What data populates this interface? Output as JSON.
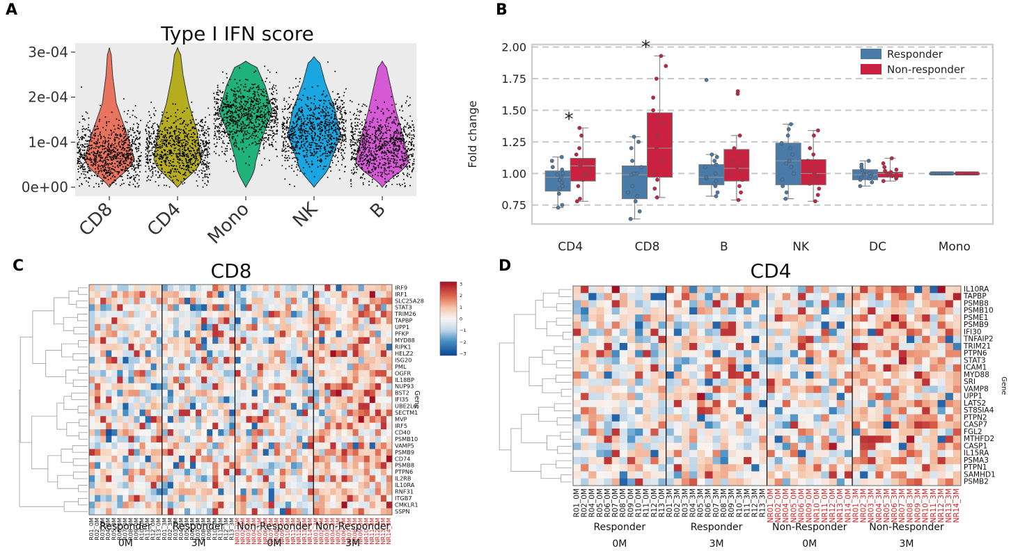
{
  "panels": {
    "a": "A",
    "b": "B",
    "c": "C",
    "d": "D"
  },
  "chart_data": [
    {
      "id": "A",
      "type": "violin",
      "title": "Type I IFN score",
      "categories": [
        "CD8",
        "CD4",
        "Mono",
        "NK",
        "B"
      ],
      "ylim": [
        -2e-05,
        0.00032
      ],
      "yticks": [
        0,
        0.0001,
        0.0002,
        0.0003
      ],
      "ytick_labels": [
        "0e+00",
        "1e-04",
        "2e-04",
        "3e-04"
      ],
      "colors": [
        "#e8735f",
        "#b5ad1f",
        "#1fb27a",
        "#1aa6e0",
        "#d65ad6"
      ],
      "medians": [
        7e-05,
        8e-05,
        0.000155,
        0.000125,
        9e-05
      ]
    },
    {
      "id": "B",
      "type": "box",
      "xlabel": "",
      "ylabel": "Fold change",
      "ylim": [
        0.6,
        2.02
      ],
      "yticks": [
        0.75,
        1.0,
        1.25,
        1.5,
        1.75,
        2.0
      ],
      "ytick_labels": [
        "0.75",
        "1.00",
        "1.25",
        "1.50",
        "1.75",
        "2.00"
      ],
      "categories": [
        "CD4",
        "CD8",
        "B",
        "NK",
        "DC",
        "Mono"
      ],
      "legend": [
        "Responder",
        "Non-responder"
      ],
      "legend_position": "top-right",
      "significance": [
        "*",
        "*",
        "",
        "",
        "",
        ""
      ],
      "series": [
        {
          "name": "Responder",
          "color": "#4a7aa8",
          "stats": [
            [
              0.73,
              0.86,
              0.97,
              1.02,
              1.13
            ],
            [
              0.64,
              0.8,
              0.99,
              1.06,
              1.29
            ],
            [
              0.82,
              0.91,
              0.97,
              1.07,
              1.15
            ],
            [
              0.8,
              0.91,
              1.1,
              1.24,
              1.39
            ],
            [
              0.9,
              0.95,
              0.99,
              1.03,
              1.1
            ],
            [
              1.0,
              1.0,
              1.0,
              1.0,
              1.0
            ]
          ],
          "points": [
            [
              0.73,
              0.75,
              0.84,
              0.88,
              0.9,
              0.93,
              0.95,
              0.97,
              0.99,
              1.0,
              1.03,
              1.05,
              1.1,
              1.13
            ],
            [
              0.64,
              0.7,
              0.78,
              0.82,
              0.85,
              0.9,
              0.99,
              1.0,
              1.0,
              1.05,
              1.1,
              1.2,
              1.25,
              1.29
            ],
            [
              0.82,
              0.85,
              0.9,
              0.92,
              0.94,
              0.96,
              0.97,
              1.0,
              1.05,
              1.07,
              1.1,
              1.13,
              1.15,
              1.74
            ],
            [
              0.8,
              0.85,
              0.9,
              0.95,
              1.0,
              1.05,
              1.08,
              1.1,
              1.15,
              1.2,
              1.24,
              1.3,
              1.35,
              1.39
            ],
            [
              0.9,
              0.93,
              0.95,
              0.96,
              0.97,
              0.98,
              0.99,
              1.0,
              1.0,
              1.02,
              1.03,
              1.05,
              1.07,
              1.1
            ],
            [
              1.0,
              1.0,
              1.0,
              1.0,
              1.0,
              1.0,
              1.0,
              1.0,
              1.0,
              1.0,
              1.0,
              1.0,
              1.0,
              1.0
            ]
          ]
        },
        {
          "name": "Non-responder",
          "color": "#c9213f",
          "stats": [
            [
              0.78,
              0.94,
              1.06,
              1.12,
              1.36
            ],
            [
              0.81,
              0.97,
              1.2,
              1.48,
              1.93
            ],
            [
              0.79,
              0.94,
              1.04,
              1.19,
              1.3
            ],
            [
              0.78,
              0.91,
              1.0,
              1.11,
              1.34
            ],
            [
              0.94,
              0.97,
              1.0,
              1.01,
              1.12
            ],
            [
              1.0,
              1.0,
              1.0,
              1.0,
              1.0
            ]
          ],
          "points": [
            [
              0.78,
              0.8,
              0.9,
              0.95,
              0.98,
              1.0,
              1.04,
              1.06,
              1.08,
              1.1,
              1.15,
              1.2,
              1.3,
              1.36
            ],
            [
              0.81,
              0.88,
              0.95,
              1.0,
              1.1,
              1.2,
              1.3,
              1.4,
              1.45,
              1.5,
              1.6,
              1.75,
              1.85,
              1.93
            ],
            [
              0.79,
              0.85,
              0.9,
              0.95,
              1.0,
              1.02,
              1.05,
              1.08,
              1.1,
              1.15,
              1.2,
              1.3,
              1.63,
              1.65
            ],
            [
              0.78,
              0.83,
              0.88,
              0.92,
              0.95,
              0.98,
              1.0,
              1.02,
              1.05,
              1.1,
              1.15,
              1.2,
              1.3,
              1.34
            ],
            [
              0.94,
              0.96,
              0.97,
              0.98,
              0.99,
              1.0,
              1.0,
              1.0,
              1.01,
              1.02,
              1.03,
              1.05,
              1.08,
              1.12
            ],
            [
              1.0,
              1.0,
              1.0,
              1.0,
              1.0,
              1.0,
              1.0,
              1.0,
              1.0,
              1.0,
              1.0,
              1.0,
              1.0,
              1.0
            ]
          ]
        }
      ]
    },
    {
      "id": "C",
      "type": "heatmap",
      "title": "CD8",
      "ylabel": "Gene",
      "colorbar": {
        "min": -3,
        "max": 3,
        "ticks": [
          "3",
          "2",
          "1",
          "0",
          "−1",
          "−2",
          "−3"
        ]
      },
      "rows": [
        "IRF9",
        "IRF1",
        "SLC25A28",
        "STAT3",
        "TRIM26",
        "TAPBP",
        "UPP1",
        "PFKP",
        "MYD88",
        "RIPK1",
        "HELZ2",
        "ISG20",
        "PML",
        "OGFR",
        "IL18BP",
        "NUP93",
        "BST2",
        "IFI35",
        "UBE2L6",
        "SECTM1",
        "MVP",
        "IRF5",
        "CD40",
        "PSMB10",
        "VAMP5",
        "PSMB9",
        "CD74",
        "PSMB8",
        "PTPN6",
        "IL2RB",
        "IL10RA",
        "RNF31",
        "ITGB7",
        "CMKLR1",
        "SSPN"
      ],
      "columns": [
        "R01_0M",
        "R02_0M",
        "R03_0M",
        "R04_0M",
        "R05_0M",
        "R06_0M",
        "R07_0M",
        "R08_0M",
        "R09_0M",
        "R10_0M",
        "R11_0M",
        "R12_0M",
        "R13_0M",
        "R01_3M",
        "R02_3M",
        "R03_3M",
        "R04_3M",
        "R05_3M",
        "R06_3M",
        "R07_3M",
        "R08_3M",
        "R09_3M",
        "R10_3M",
        "R11_3M",
        "R12_3M",
        "R13_3M",
        "NR01_0M",
        "NR02_0M",
        "NR03_0M",
        "NR04_0M",
        "NR05_0M",
        "NR06_0M",
        "NR07_0M",
        "NR08_0M",
        "NR09_0M",
        "NR10_0M",
        "NR11_0M",
        "NR12_0M",
        "NR13_0M",
        "NR14_0M",
        "NR01_3M",
        "NR02_3M",
        "NR03_3M",
        "NR04_3M",
        "NR05_3M",
        "NR06_3M",
        "NR07_3M",
        "NR08_3M",
        "NR09_3M",
        "NR10_3M",
        "NR11_3M",
        "NR12_3M",
        "NR13_3M",
        "NR14_3M"
      ],
      "group_sizes": [
        13,
        13,
        14,
        14
      ],
      "groups": [
        [
          "Responder",
          "0M"
        ],
        [
          "Responder",
          "3M"
        ],
        [
          "Non-Responder",
          "0M"
        ],
        [
          "Non-Responder",
          "3M"
        ]
      ]
    },
    {
      "id": "D",
      "type": "heatmap",
      "title": "CD4",
      "ylabel": "Gene",
      "rows": [
        "IL10RA",
        "TAPBP",
        "PSMB8",
        "PSMB10",
        "PSME1",
        "PSMB9",
        "IFI30",
        "TNFAIP2",
        "TRIM21",
        "PTPN6",
        "STAT3",
        "ICAM1",
        "MYD88",
        "SRI",
        "VAMP8",
        "UPP1",
        "LATS2",
        "ST8SIA4",
        "PTPN2",
        "CASP7",
        "FGL2",
        "MTHFD2",
        "CASP1",
        "IL15RA",
        "PSMA3",
        "PTPN1",
        "SAMHD1",
        "PSMB2"
      ],
      "columns": [
        "R01_0M",
        "R02_0M",
        "R04_0M",
        "R05_0M",
        "R06_0M",
        "R07_0M",
        "R08_0M",
        "R09_0M",
        "R10_0M",
        "R11_0M",
        "R12_0M",
        "R13_0M",
        "R01_3M",
        "R02_3M",
        "R03_3M",
        "R04_3M",
        "R05_3M",
        "R06_3M",
        "R07_3M",
        "R08_3M",
        "R09_3M",
        "R10_3M",
        "R11_3M",
        "R12_3M",
        "R13_3M",
        "NR01_0M",
        "NR02_0M",
        "NR04_0M",
        "NR05_0M",
        "NR06_0M",
        "NR09_0M",
        "NR10_0M",
        "NR11_0M",
        "NR12_0M",
        "NR13_0M",
        "NR14_0M",
        "NR01_3M",
        "NR02_3M",
        "NR03_3M",
        "NR04_3M",
        "NR05_3M",
        "NR06_3M",
        "NR07_3M",
        "NR08_3M",
        "NR09_3M",
        "NR10_3M",
        "NR11_3M",
        "NR12_3M",
        "NR13_3M",
        "NR14_3M"
      ],
      "group_sizes": [
        12,
        13,
        11,
        14
      ],
      "groups": [
        [
          "Responder",
          "0M"
        ],
        [
          "Responder",
          "3M"
        ],
        [
          "Non-Responder",
          "0M"
        ],
        [
          "Non-Responder",
          "3M"
        ]
      ]
    }
  ]
}
